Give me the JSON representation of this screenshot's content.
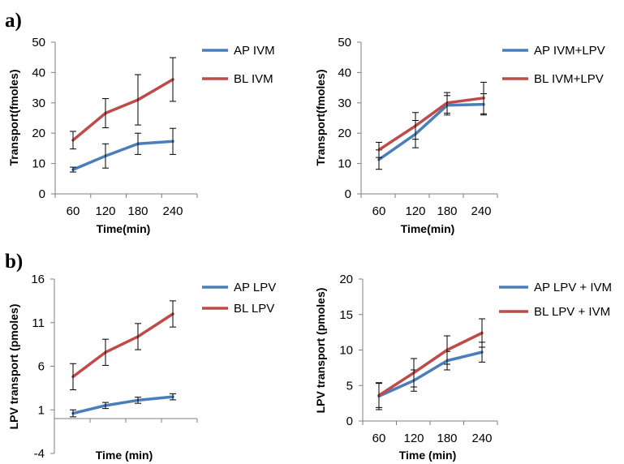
{
  "figure": {
    "panel_labels": [
      "a)",
      "b)"
    ]
  },
  "colors": {
    "ap": "#4a7ebb",
    "bl": "#be4b48",
    "axis": "#7f7f7f",
    "error_bar": "#000000"
  },
  "chart_data": [
    {
      "type": "line",
      "panel": "a)",
      "xlabel": "Time(min)",
      "ylabel": "Transport(fmoles)",
      "categories": [
        "60",
        "120",
        "180",
        "240"
      ],
      "ylim": [
        0,
        50
      ],
      "yticks": [
        0,
        10,
        20,
        30,
        40,
        50
      ],
      "grid": false,
      "legend_position": "right",
      "series": [
        {
          "name": "AP IVM",
          "color": "#4a7ebb",
          "values": [
            8,
            12.5,
            16.5,
            17.3
          ],
          "error": [
            0.8,
            4,
            3.5,
            4.3
          ]
        },
        {
          "name": "BL IVM",
          "color": "#be4b48",
          "values": [
            17.7,
            26.6,
            31,
            37.7
          ],
          "error": [
            2.9,
            4.8,
            8.3,
            7.2
          ]
        }
      ]
    },
    {
      "type": "line",
      "panel": "a)",
      "xlabel": "Time(min)",
      "ylabel": "Transport(fmoles)",
      "categories": [
        "60",
        "120",
        "180",
        "240"
      ],
      "ylim": [
        0,
        50
      ],
      "yticks": [
        0,
        10,
        20,
        30,
        40,
        50
      ],
      "grid": false,
      "legend_position": "top-right",
      "series": [
        {
          "name": "AP IVM+LPV",
          "color": "#4a7ebb",
          "values": [
            11.3,
            19.7,
            29.2,
            29.5
          ],
          "error": [
            3.2,
            4.5,
            3.2,
            3.5
          ]
        },
        {
          "name": "BL IVM+LPV",
          "color": "#be4b48",
          "values": [
            14.5,
            22.4,
            30,
            31.6
          ],
          "error": [
            2.5,
            4.4,
            3.4,
            5.2
          ]
        }
      ]
    },
    {
      "type": "line",
      "panel": "b)",
      "xlabel": "Time (min)",
      "ylabel": "LPV  transport (pmoles)",
      "categories": [
        "60",
        "120",
        "180",
        "240"
      ],
      "ylim": [
        -4,
        16
      ],
      "yticks": [
        -4,
        1,
        6,
        11,
        16
      ],
      "x_axis_at": 0,
      "grid": false,
      "legend_position": "right",
      "series": [
        {
          "name": "AP LPV",
          "color": "#4a7ebb",
          "values": [
            0.6,
            1.5,
            2.1,
            2.5
          ],
          "error": [
            0.4,
            0.35,
            0.35,
            0.35
          ]
        },
        {
          "name": "BL LPV",
          "color": "#be4b48",
          "values": [
            4.8,
            7.6,
            9.4,
            12
          ],
          "error": [
            1.5,
            1.5,
            1.5,
            1.5
          ]
        }
      ]
    },
    {
      "type": "line",
      "panel": "b)",
      "xlabel": "Time (min)",
      "ylabel": "LPV transport (pmoles)",
      "categories": [
        "60",
        "120",
        "180",
        "240"
      ],
      "ylim": [
        0,
        20
      ],
      "yticks": [
        0,
        5,
        10,
        15,
        20
      ],
      "grid": false,
      "legend_position": "top-right",
      "series": [
        {
          "name": "AP LPV + IVM",
          "color": "#4a7ebb",
          "values": [
            3.5,
            5.7,
            8.5,
            9.7
          ],
          "error": [
            1.9,
            1.5,
            1.3,
            1.4
          ]
        },
        {
          "name": "BL LPV + IVM",
          "color": "#be4b48",
          "values": [
            3.6,
            6.8,
            10,
            12.4
          ],
          "error": [
            1.7,
            2,
            2,
            2
          ]
        }
      ]
    }
  ]
}
